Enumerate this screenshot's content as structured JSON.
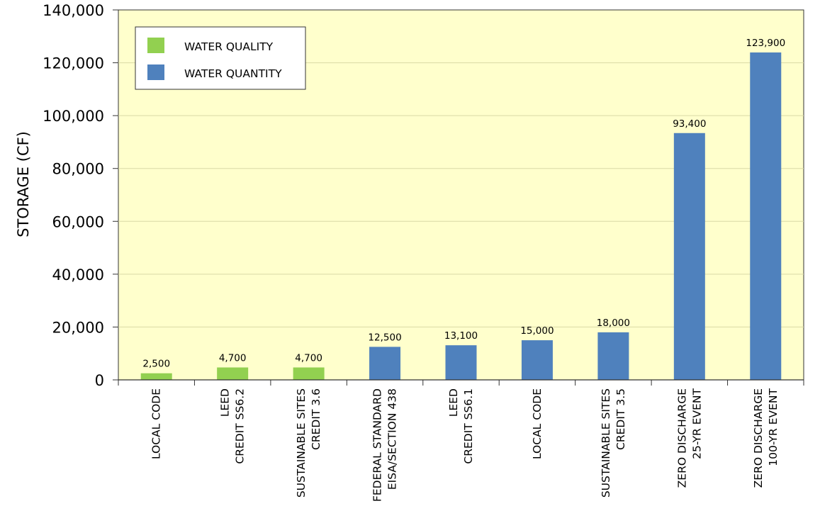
{
  "chart_data": {
    "type": "bar",
    "title": "",
    "ylabel": "STORAGE (CF)",
    "xlabel": "",
    "ylim": [
      0,
      140000
    ],
    "yticks": [
      0,
      20000,
      40000,
      60000,
      80000,
      100000,
      120000,
      140000
    ],
    "ytick_labels": [
      "0",
      "20,000",
      "40,000",
      "60,000",
      "80,000",
      "100,000",
      "120,000",
      "140,000"
    ],
    "grid": "horizontal",
    "legend_position": "top-left",
    "background_color": "#ffffcc",
    "series": [
      {
        "name": "WATER QUALITY",
        "color": "#92d050"
      },
      {
        "name": "WATER QUANTITY",
        "color": "#4f81bd"
      }
    ],
    "bars": [
      {
        "category": [
          "LOCAL CODE"
        ],
        "value": 2500,
        "label": "2,500",
        "series": 0
      },
      {
        "category": [
          "LEED",
          "CREDIT SS6.2"
        ],
        "value": 4700,
        "label": "4,700",
        "series": 0
      },
      {
        "category": [
          "SUSTAINABLE SITES",
          "CREDIT 3.6"
        ],
        "value": 4700,
        "label": "4,700",
        "series": 0
      },
      {
        "category": [
          "FEDERAL STANDARD",
          "EISA/SECTION 438"
        ],
        "value": 12500,
        "label": "12,500",
        "series": 1
      },
      {
        "category": [
          "LEED",
          "CREDIT SS6.1"
        ],
        "value": 13100,
        "label": "13,100",
        "series": 1
      },
      {
        "category": [
          "LOCAL CODE"
        ],
        "value": 15000,
        "label": "15,000",
        "series": 1
      },
      {
        "category": [
          "SUSTAINABLE SITES",
          "CREDIT 3.5"
        ],
        "value": 18000,
        "label": "18,000",
        "series": 1
      },
      {
        "category": [
          "ZERO DISCHARGE",
          "25-YR EVENT"
        ],
        "value": 93400,
        "label": "93,400",
        "series": 1
      },
      {
        "category": [
          "ZERO DISCHARGE",
          "100-YR EVENT"
        ],
        "value": 123900,
        "label": "123,900",
        "series": 1
      }
    ]
  }
}
